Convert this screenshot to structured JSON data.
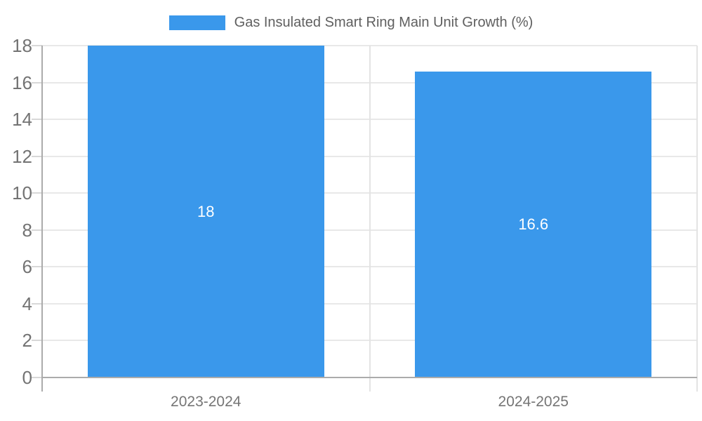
{
  "page": {
    "background": "#ffffff"
  },
  "legend": {
    "label": "Gas Insulated Smart Ring Main Unit Growth (%)"
  },
  "colors": {
    "bar": "#3a98eb",
    "grid": "#e8e8e8",
    "axis_line": "#ababab",
    "boundary_line": "#e3e3e3",
    "tick_mark": "#d8d8d8",
    "y_tick_text": "#737373",
    "x_tick_text": "#757575",
    "legend_text": "#5f5f5f",
    "data_label_text": "#ffffff"
  },
  "chart_data": {
    "type": "bar",
    "title": "Gas Insulated Smart Ring Main Unit Growth (%)",
    "categories": [
      "2023-2024",
      "2024-2025"
    ],
    "series": [
      {
        "name": "Gas Insulated Smart Ring Main Unit Growth (%)",
        "values": [
          18,
          16.6
        ]
      }
    ],
    "data_labels": [
      "18",
      "16.6"
    ],
    "xlabel": "",
    "ylabel": "",
    "ylim": [
      0,
      18
    ],
    "ytick_step": 2,
    "ytick_labels": [
      "0",
      "2",
      "4",
      "6",
      "8",
      "10",
      "12",
      "14",
      "16",
      "18"
    ],
    "grid": true,
    "legend_position": "top-center",
    "bar_width_fraction": 0.722
  }
}
